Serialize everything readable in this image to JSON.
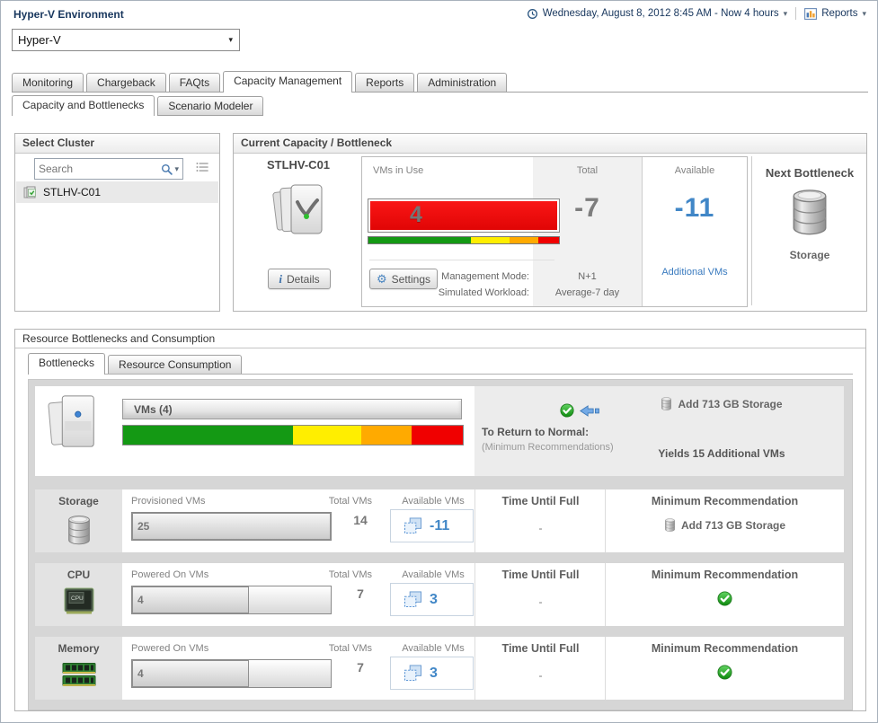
{
  "colors": {
    "accent_blue": "#4187c7",
    "link_blue": "#3a7bbf",
    "gauge_red": "#ee0f0f",
    "seg_green": "#149914",
    "seg_yellow": "#ffee00",
    "seg_orange": "#ffaa00",
    "seg_red": "#f00000"
  },
  "header": {
    "title": "Hyper-V Environment",
    "environment": "Hyper-V",
    "timerange": "Wednesday, August 8, 2012 8:45 AM - Now 4 hours",
    "reports_label": "Reports"
  },
  "tabs": {
    "main": [
      "Monitoring",
      "Chargeback",
      "FAQts",
      "Capacity Management",
      "Reports",
      "Administration"
    ],
    "sub": [
      "Capacity and Bottlenecks",
      "Scenario Modeler"
    ]
  },
  "select_cluster": {
    "title": "Select Cluster",
    "search_placeholder": "Search",
    "items": [
      {
        "name": "STLHV-C01"
      }
    ]
  },
  "capacity": {
    "title": "Current Capacity / Bottleneck",
    "cluster_name": "STLHV-C01",
    "details_button": "Details",
    "settings_button": "Settings",
    "vms_in_use_label": "VMs in Use",
    "vms_in_use_value": "4",
    "total_label": "Total",
    "total_value": "-7",
    "available_label": "Available",
    "available_value": "-11",
    "additional_vms_link": "Additional VMs",
    "management_mode_label": "Management Mode:",
    "management_mode_value": "N+1",
    "simulated_workload_label": "Simulated Workload:",
    "simulated_workload_value": "Average-7 day",
    "minibar": {
      "green": 54,
      "yellow": 20,
      "orange": 15,
      "red": 11
    },
    "next_bottleneck": {
      "title": "Next Bottleneck",
      "value": "Storage"
    }
  },
  "bottlenecks": {
    "title": "Resource Bottlenecks and Consumption",
    "tabs": [
      "Bottlenecks",
      "Resource Consumption"
    ],
    "summary": {
      "vms_label": "VMs (4)",
      "bar": {
        "green": 50,
        "yellow": 20,
        "orange": 15,
        "red": 15
      },
      "return_to_normal": "To Return to Normal:",
      "min_recommendations": "(Minimum Recommendations)",
      "recommendation": "Add 713 GB Storage",
      "yields": "Yields 15 Additional VMs"
    },
    "columns": {
      "total_vms": "Total VMs",
      "available_vms": "Available VMs",
      "time_until_full": "Time Until Full",
      "minimum_recommendation": "Minimum Recommendation"
    },
    "rows": [
      {
        "name": "Storage",
        "metric_label": "Provisioned VMs",
        "metric_value": "25",
        "bar_pct": 100,
        "total_value": "14",
        "available_value": "-11",
        "time_until_full": "-",
        "recommendation": "Add 713 GB Storage"
      },
      {
        "name": "CPU",
        "metric_label": "Powered On VMs",
        "metric_value": "4",
        "bar_pct": 59,
        "total_value": "7",
        "available_value": "3",
        "time_until_full": "-"
      },
      {
        "name": "Memory",
        "metric_label": "Powered On VMs",
        "metric_value": "4",
        "bar_pct": 59,
        "total_value": "7",
        "available_value": "3",
        "time_until_full": "-"
      }
    ]
  },
  "icons": [
    "clock-icon",
    "chart-icon",
    "dropdown-caret-icon",
    "search-icon",
    "list-menu-icon",
    "cluster-icon",
    "info-icon",
    "gear-icon",
    "storage-icon",
    "vm-stack-icon",
    "ok-check-icon",
    "arrow-left-icon",
    "add-vm-icon",
    "cpu-icon",
    "memory-icon"
  ]
}
